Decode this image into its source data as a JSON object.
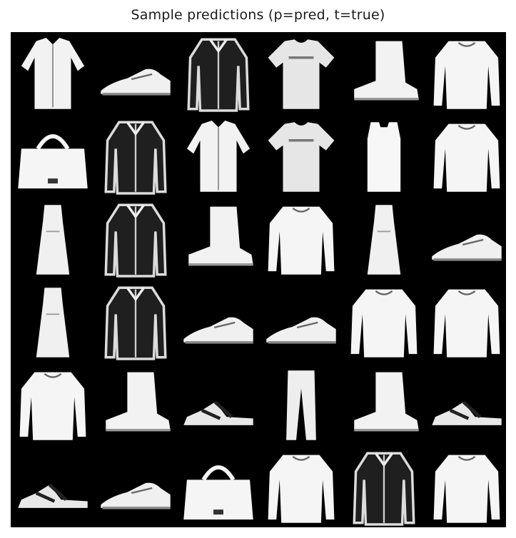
{
  "title": "Sample predictions (p=pred, t=true)",
  "grid": {
    "rows": 6,
    "cols": 6,
    "background": "#000000",
    "items": [
      [
        "shirt",
        "sneaker",
        "coat",
        "tshirt",
        "ankle-boot",
        "pullover"
      ],
      [
        "bag",
        "coat",
        "shirt",
        "tshirt",
        "top",
        "pullover"
      ],
      [
        "dress",
        "coat",
        "ankle-boot",
        "pullover",
        "dress",
        "sneaker"
      ],
      [
        "dress",
        "coat",
        "sneaker",
        "sneaker",
        "pullover",
        "pullover"
      ],
      [
        "pullover",
        "ankle-boot",
        "sandal",
        "trouser",
        "ankle-boot",
        "sandal"
      ],
      [
        "sandal",
        "sneaker",
        "bag",
        "pullover",
        "coat",
        "pullover"
      ]
    ]
  }
}
